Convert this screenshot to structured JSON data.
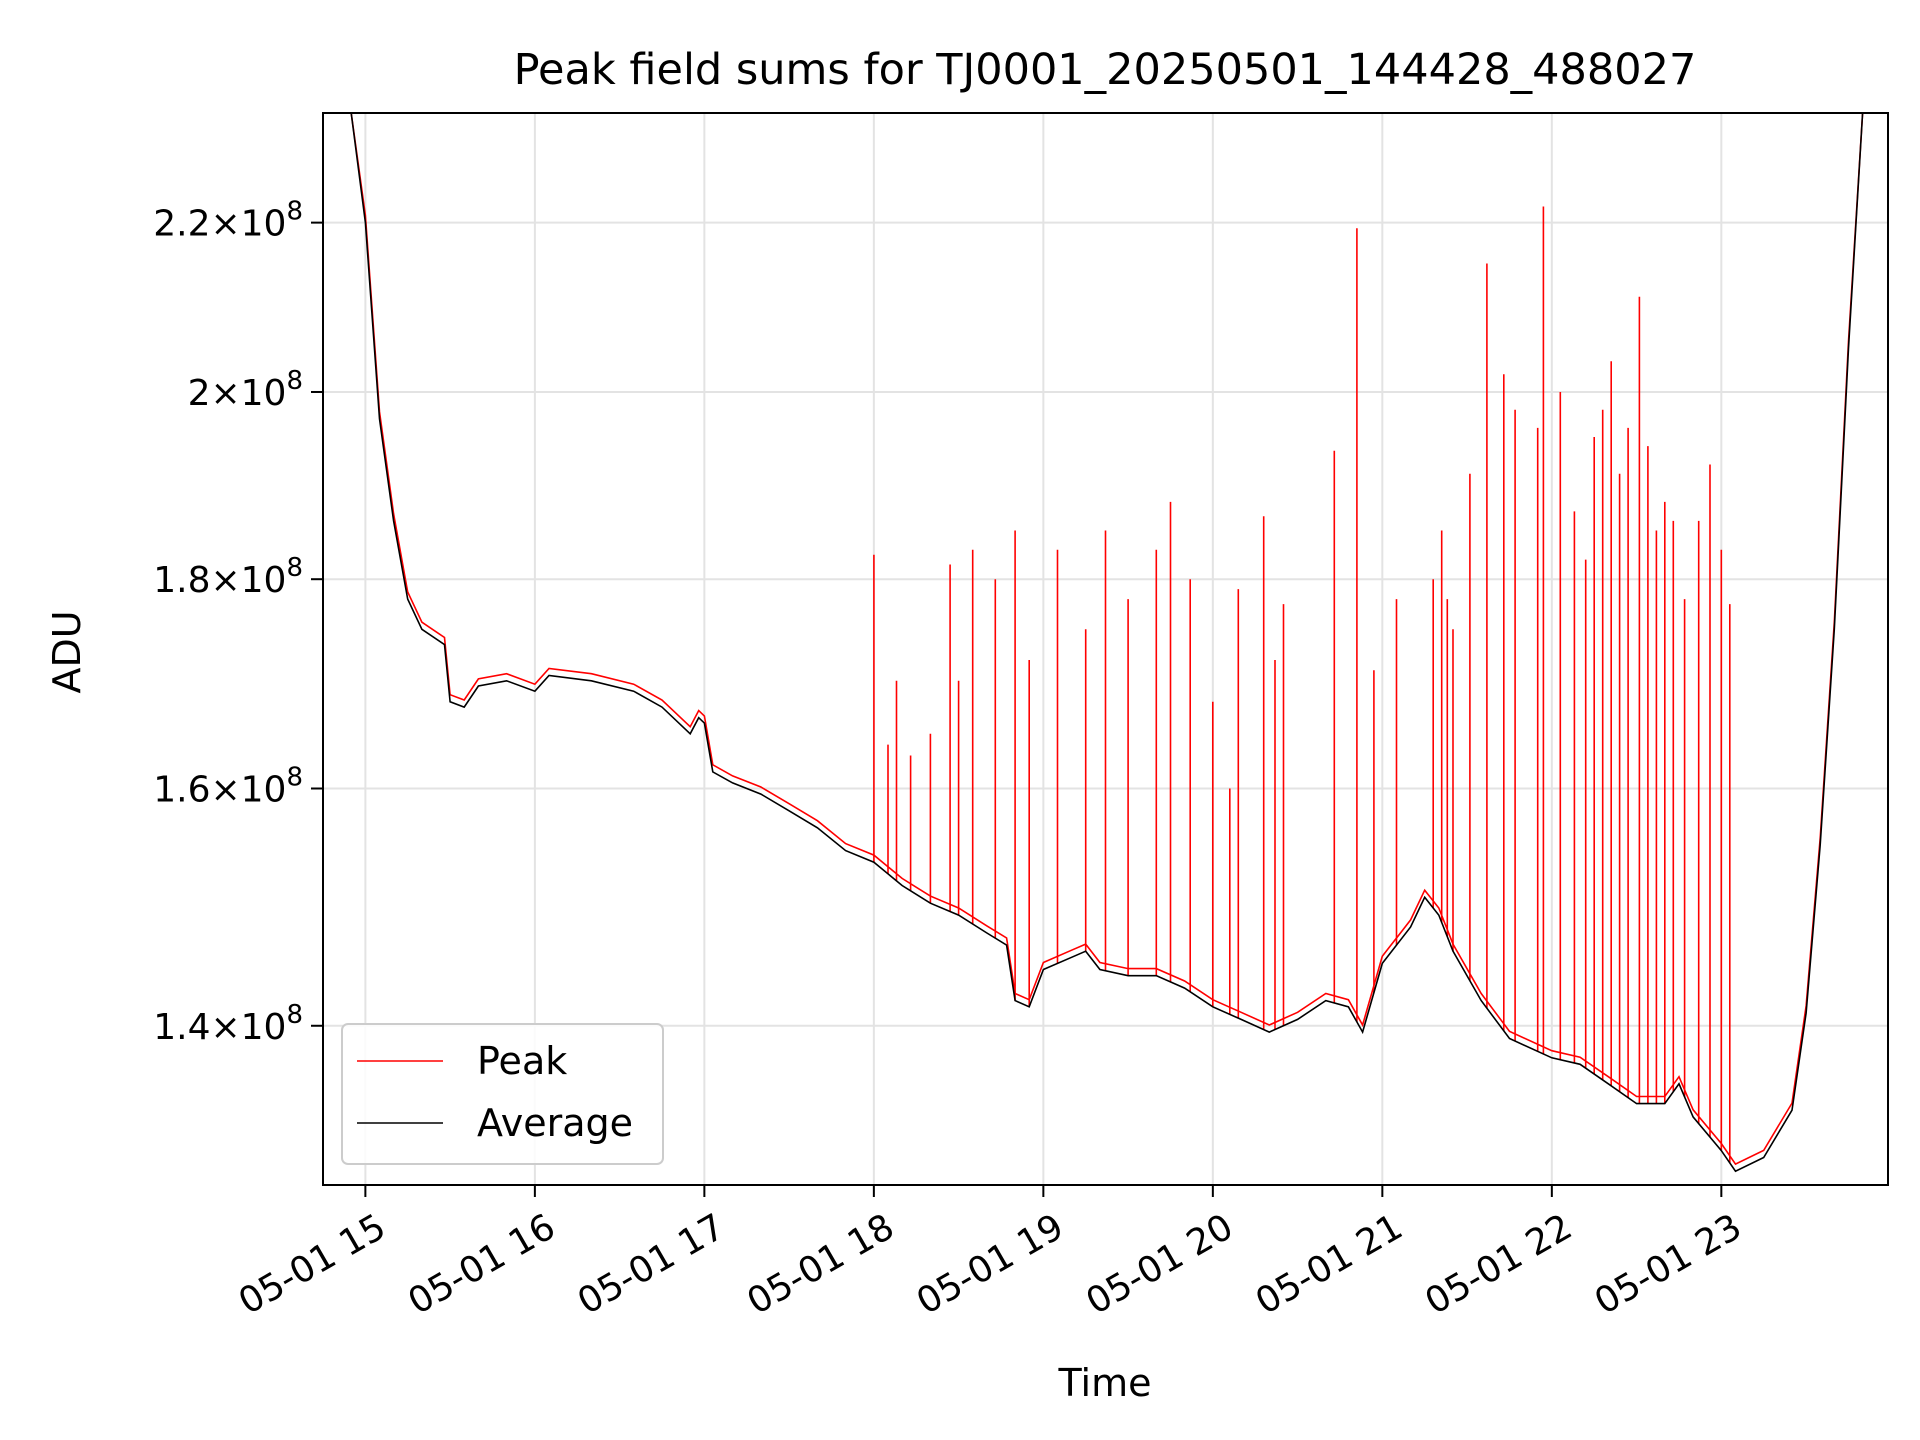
{
  "chart_data": {
    "type": "line",
    "title": "Peak field sums for TJ0001_20250501_144428_488027",
    "xlabel": "Time",
    "ylabel": "ADU",
    "y_scale": "log",
    "xlim": [
      "2025-05-01 14:45",
      "2025-05-01 23:59"
    ],
    "ylim": [
      128000000,
      234000000
    ],
    "grid": true,
    "legend_position": "lower left",
    "x_ticks": [
      {
        "t": "2025-05-01 15:00",
        "label": "05-01 15"
      },
      {
        "t": "2025-05-01 16:00",
        "label": "05-01 16"
      },
      {
        "t": "2025-05-01 17:00",
        "label": "05-01 17"
      },
      {
        "t": "2025-05-01 18:00",
        "label": "05-01 18"
      },
      {
        "t": "2025-05-01 19:00",
        "label": "05-01 19"
      },
      {
        "t": "2025-05-01 20:00",
        "label": "05-01 20"
      },
      {
        "t": "2025-05-01 21:00",
        "label": "05-01 21"
      },
      {
        "t": "2025-05-01 22:00",
        "label": "05-01 22"
      },
      {
        "t": "2025-05-01 23:00",
        "label": "05-01 23"
      }
    ],
    "y_ticks": [
      {
        "value": 140000000,
        "mantissa": "1.4",
        "base": "10",
        "exp": "8"
      },
      {
        "value": 160000000,
        "mantissa": "1.6",
        "base": "10",
        "exp": "8"
      },
      {
        "value": 180000000,
        "mantissa": "1.8",
        "base": "10",
        "exp": "8"
      },
      {
        "value": 200000000,
        "mantissa": "2",
        "base": "10",
        "exp": "8"
      },
      {
        "value": 220000000,
        "mantissa": "2.2",
        "base": "10",
        "exp": "8"
      }
    ],
    "series": [
      {
        "name": "Average",
        "color": "#000000",
        "points": [
          [
            "2025-05-01 14:55",
            234000000
          ],
          [
            "2025-05-01 15:00",
            220000000
          ],
          [
            "2025-05-01 15:05",
            197000000
          ],
          [
            "2025-05-01 15:10",
            186000000
          ],
          [
            "2025-05-01 15:15",
            178000000
          ],
          [
            "2025-05-01 15:20",
            175000000
          ],
          [
            "2025-05-01 15:28",
            173500000
          ],
          [
            "2025-05-01 15:30",
            168000000
          ],
          [
            "2025-05-01 15:35",
            167500000
          ],
          [
            "2025-05-01 15:40",
            169500000
          ],
          [
            "2025-05-01 15:50",
            170000000
          ],
          [
            "2025-05-01 16:00",
            169000000
          ],
          [
            "2025-05-01 16:05",
            170500000
          ],
          [
            "2025-05-01 16:20",
            170000000
          ],
          [
            "2025-05-01 16:35",
            169000000
          ],
          [
            "2025-05-01 16:45",
            167500000
          ],
          [
            "2025-05-01 16:55",
            165000000
          ],
          [
            "2025-05-01 16:58",
            166500000
          ],
          [
            "2025-05-01 17:00",
            166000000
          ],
          [
            "2025-05-01 17:03",
            161500000
          ],
          [
            "2025-05-01 17:10",
            160500000
          ],
          [
            "2025-05-01 17:20",
            159500000
          ],
          [
            "2025-05-01 17:30",
            158000000
          ],
          [
            "2025-05-01 17:40",
            156500000
          ],
          [
            "2025-05-01 17:50",
            154500000
          ],
          [
            "2025-05-01 18:00",
            153500000
          ],
          [
            "2025-05-01 18:10",
            151500000
          ],
          [
            "2025-05-01 18:20",
            150000000
          ],
          [
            "2025-05-01 18:30",
            149000000
          ],
          [
            "2025-05-01 18:40",
            147500000
          ],
          [
            "2025-05-01 18:47",
            146500000
          ],
          [
            "2025-05-01 18:50",
            142000000
          ],
          [
            "2025-05-01 18:55",
            141500000
          ],
          [
            "2025-05-01 19:00",
            144500000
          ],
          [
            "2025-05-01 19:10",
            145500000
          ],
          [
            "2025-05-01 19:15",
            146000000
          ],
          [
            "2025-05-01 19:20",
            144500000
          ],
          [
            "2025-05-01 19:30",
            144000000
          ],
          [
            "2025-05-01 19:40",
            144000000
          ],
          [
            "2025-05-01 19:50",
            143000000
          ],
          [
            "2025-05-01 20:00",
            141500000
          ],
          [
            "2025-05-01 20:10",
            140500000
          ],
          [
            "2025-05-01 20:20",
            139500000
          ],
          [
            "2025-05-01 20:30",
            140500000
          ],
          [
            "2025-05-01 20:40",
            142000000
          ],
          [
            "2025-05-01 20:48",
            141500000
          ],
          [
            "2025-05-01 20:53",
            139500000
          ],
          [
            "2025-05-01 21:00",
            145000000
          ],
          [
            "2025-05-01 21:10",
            148000000
          ],
          [
            "2025-05-01 21:15",
            150500000
          ],
          [
            "2025-05-01 21:20",
            149000000
          ],
          [
            "2025-05-01 21:25",
            146000000
          ],
          [
            "2025-05-01 21:35",
            142000000
          ],
          [
            "2025-05-01 21:45",
            139000000
          ],
          [
            "2025-05-01 22:00",
            137500000
          ],
          [
            "2025-05-01 22:10",
            137000000
          ],
          [
            "2025-05-01 22:20",
            135500000
          ],
          [
            "2025-05-01 22:30",
            134000000
          ],
          [
            "2025-05-01 22:40",
            134000000
          ],
          [
            "2025-05-01 22:45",
            135500000
          ],
          [
            "2025-05-01 22:50",
            133000000
          ],
          [
            "2025-05-01 23:00",
            130500000
          ],
          [
            "2025-05-01 23:05",
            129000000
          ],
          [
            "2025-05-01 23:15",
            130000000
          ],
          [
            "2025-05-01 23:25",
            133500000
          ],
          [
            "2025-05-01 23:30",
            141000000
          ],
          [
            "2025-05-01 23:35",
            155000000
          ],
          [
            "2025-05-01 23:40",
            175000000
          ],
          [
            "2025-05-01 23:45",
            205000000
          ],
          [
            "2025-05-01 23:50",
            234000000
          ]
        ]
      },
      {
        "name": "Peak",
        "color": "#ff0000",
        "spikes": [
          [
            "2025-05-01 18:00",
            182500000
          ],
          [
            "2025-05-01 18:05",
            164000000
          ],
          [
            "2025-05-01 18:08",
            170000000
          ],
          [
            "2025-05-01 18:13",
            163000000
          ],
          [
            "2025-05-01 18:20",
            165000000
          ],
          [
            "2025-05-01 18:27",
            181500000
          ],
          [
            "2025-05-01 18:30",
            170000000
          ],
          [
            "2025-05-01 18:35",
            183000000
          ],
          [
            "2025-05-01 18:43",
            180000000
          ],
          [
            "2025-05-01 18:50",
            185000000
          ],
          [
            "2025-05-01 18:55",
            172000000
          ],
          [
            "2025-05-01 19:05",
            183000000
          ],
          [
            "2025-05-01 19:15",
            175000000
          ],
          [
            "2025-05-01 19:22",
            185000000
          ],
          [
            "2025-05-01 19:30",
            178000000
          ],
          [
            "2025-05-01 19:40",
            183000000
          ],
          [
            "2025-05-01 19:45",
            188000000
          ],
          [
            "2025-05-01 19:52",
            180000000
          ],
          [
            "2025-05-01 20:00",
            168000000
          ],
          [
            "2025-05-01 20:06",
            160000000
          ],
          [
            "2025-05-01 20:09",
            179000000
          ],
          [
            "2025-05-01 20:18",
            186500000
          ],
          [
            "2025-05-01 20:22",
            172000000
          ],
          [
            "2025-05-01 20:25",
            177500000
          ],
          [
            "2025-05-01 20:43",
            193500000
          ],
          [
            "2025-05-01 20:51",
            219300000
          ],
          [
            "2025-05-01 20:57",
            171000000
          ],
          [
            "2025-05-01 21:05",
            178000000
          ],
          [
            "2025-05-01 21:18",
            180000000
          ],
          [
            "2025-05-01 21:21",
            185000000
          ],
          [
            "2025-05-01 21:23",
            178000000
          ],
          [
            "2025-05-01 21:25",
            175000000
          ],
          [
            "2025-05-01 21:31",
            191000000
          ],
          [
            "2025-05-01 21:37",
            215000000
          ],
          [
            "2025-05-01 21:43",
            202000000
          ],
          [
            "2025-05-01 21:47",
            198000000
          ],
          [
            "2025-05-01 21:55",
            196000000
          ],
          [
            "2025-05-01 21:57",
            222000000
          ],
          [
            "2025-05-01 22:03",
            200000000
          ],
          [
            "2025-05-01 22:08",
            187000000
          ],
          [
            "2025-05-01 22:12",
            182000000
          ],
          [
            "2025-05-01 22:15",
            195000000
          ],
          [
            "2025-05-01 22:18",
            198000000
          ],
          [
            "2025-05-01 22:21",
            203500000
          ],
          [
            "2025-05-01 22:24",
            191000000
          ],
          [
            "2025-05-01 22:27",
            196000000
          ],
          [
            "2025-05-01 22:31",
            211000000
          ],
          [
            "2025-05-01 22:34",
            194000000
          ],
          [
            "2025-05-01 22:37",
            185000000
          ],
          [
            "2025-05-01 22:40",
            188000000
          ],
          [
            "2025-05-01 22:43",
            186000000
          ],
          [
            "2025-05-01 22:47",
            178000000
          ],
          [
            "2025-05-01 22:52",
            186000000
          ],
          [
            "2025-05-01 22:56",
            192000000
          ],
          [
            "2025-05-01 23:00",
            183000000
          ],
          [
            "2025-05-01 23:03",
            177500000
          ]
        ]
      }
    ]
  }
}
